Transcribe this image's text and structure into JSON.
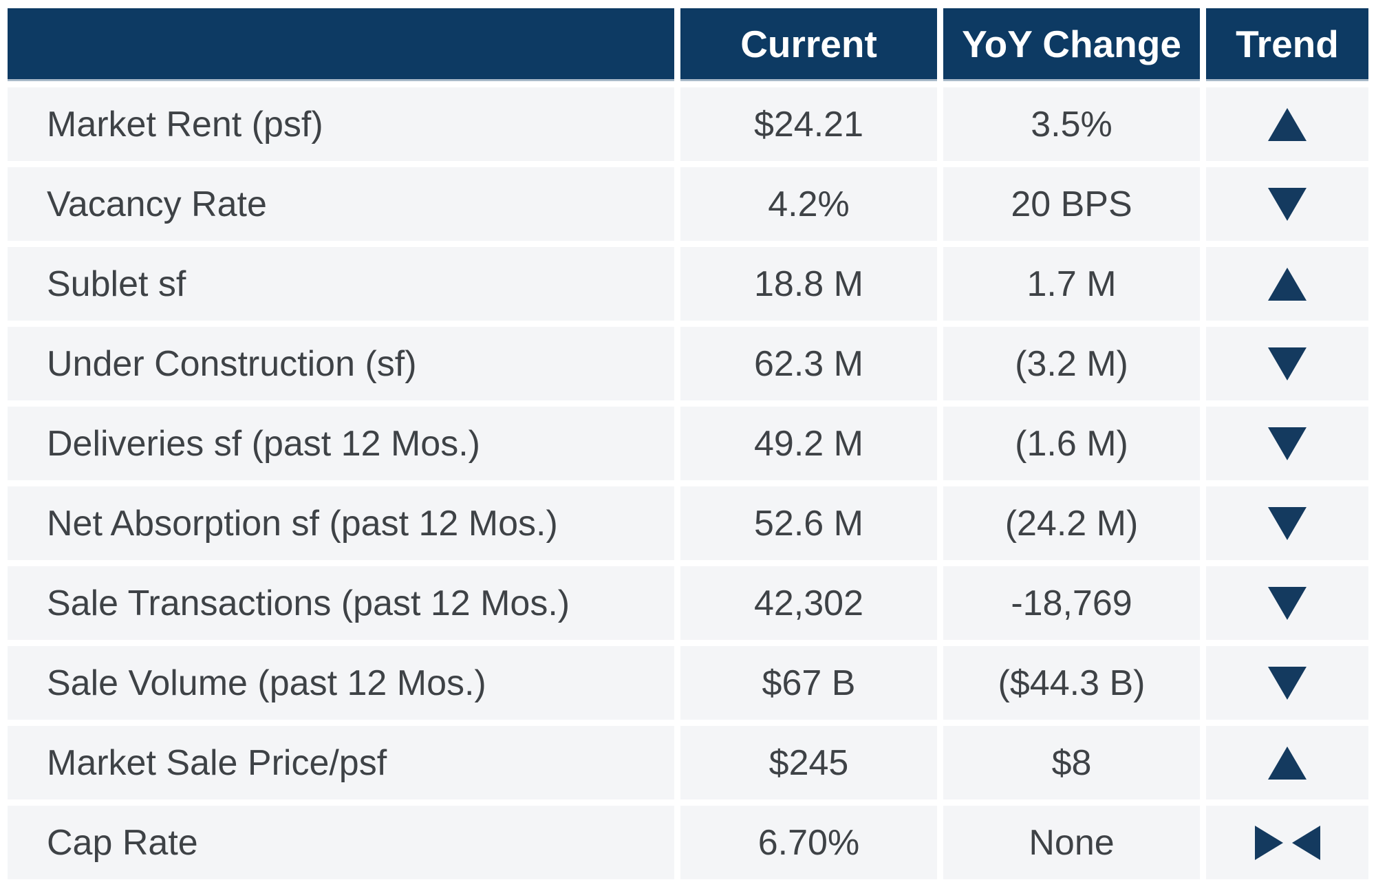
{
  "chart_data": {
    "type": "table",
    "columns": [
      "",
      "Current",
      "YoY Change",
      "Trend"
    ],
    "rows": [
      {
        "label": "Market Rent (psf)",
        "current": "$24.21",
        "yoy_change": "3.5%",
        "trend": "up"
      },
      {
        "label": "Vacancy Rate",
        "current": "4.2%",
        "yoy_change": "20 BPS",
        "trend": "down"
      },
      {
        "label": "Sublet sf",
        "current": "18.8 M",
        "yoy_change": "1.7 M",
        "trend": "up"
      },
      {
        "label": "Under Construction (sf)",
        "current": "62.3 M",
        "yoy_change": "(3.2 M)",
        "trend": "down"
      },
      {
        "label": "Deliveries sf (past 12 Mos.)",
        "current": "49.2 M",
        "yoy_change": "(1.6 M)",
        "trend": "down"
      },
      {
        "label": "Net Absorption sf (past 12 Mos.)",
        "current": "52.6 M",
        "yoy_change": "(24.2 M)",
        "trend": "down"
      },
      {
        "label": "Sale Transactions (past 12 Mos.)",
        "current": "42,302",
        "yoy_change": "-18,769",
        "trend": "down"
      },
      {
        "label": "Sale Volume (past 12 Mos.)",
        "current": "$67 B",
        "yoy_change": "($44.3 B)",
        "trend": "down"
      },
      {
        "label": "Market Sale Price/psf",
        "current": "$245",
        "yoy_change": "$8",
        "trend": "up"
      },
      {
        "label": "Cap Rate",
        "current": "6.70%",
        "yoy_change": "None",
        "trend": "flat"
      }
    ],
    "layout": {
      "grid": "off",
      "legend": "none"
    }
  },
  "colors": {
    "header_bg": "#0d3a63",
    "header_text": "#ffffff",
    "header_edge": "#a9bac9",
    "cell_bg": "#f4f5f7",
    "cell_text": "#3e4246",
    "trend_icon": "#143a5f",
    "page_bg": "#ffffff"
  }
}
